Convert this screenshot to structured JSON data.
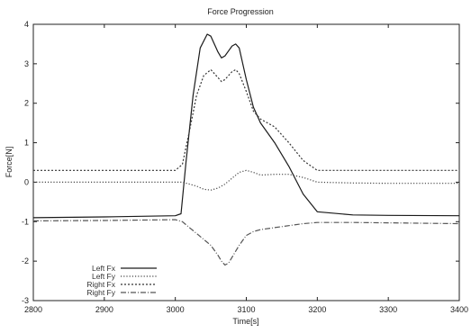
{
  "chart_data": {
    "type": "line",
    "title": "Force Progression",
    "xlabel": "Time[s]",
    "ylabel": "Force[N]",
    "xlim": [
      2800,
      3400
    ],
    "ylim": [
      -3,
      4
    ],
    "xticks": [
      2800,
      2900,
      3000,
      3100,
      3200,
      3300,
      3400
    ],
    "yticks": [
      -3,
      -2,
      -1,
      0,
      1,
      2,
      3,
      4
    ],
    "grid": false,
    "legend_position": "bottom-left",
    "series": [
      {
        "name": "Left Fx",
        "dash": "solid",
        "color": "#1a1a1a",
        "x": [
          2800,
          2900,
          3000,
          3008,
          3015,
          3025,
          3035,
          3045,
          3050,
          3060,
          3065,
          3070,
          3080,
          3085,
          3090,
          3100,
          3110,
          3120,
          3140,
          3160,
          3180,
          3200,
          3250,
          3300,
          3400
        ],
        "y": [
          -0.9,
          -0.88,
          -0.85,
          -0.8,
          0.5,
          2.2,
          3.4,
          3.75,
          3.7,
          3.3,
          3.15,
          3.2,
          3.45,
          3.5,
          3.4,
          2.6,
          1.9,
          1.5,
          1.0,
          0.4,
          -0.3,
          -0.75,
          -0.83,
          -0.84,
          -0.85
        ]
      },
      {
        "name": "Left Fy",
        "dash": "1.2,2",
        "color": "#444444",
        "x": [
          2800,
          2900,
          3000,
          3010,
          3020,
          3030,
          3040,
          3050,
          3060,
          3070,
          3080,
          3090,
          3100,
          3110,
          3120,
          3140,
          3160,
          3180,
          3200,
          3250,
          3300,
          3400
        ],
        "y": [
          0.0,
          0.0,
          0.0,
          0.0,
          -0.05,
          -0.1,
          -0.18,
          -0.2,
          -0.15,
          -0.05,
          0.1,
          0.25,
          0.3,
          0.25,
          0.18,
          0.2,
          0.2,
          0.12,
          0.0,
          -0.02,
          -0.03,
          -0.03
        ]
      },
      {
        "name": "Right Fx",
        "dash": "2,2",
        "color": "#333333",
        "x": [
          2800,
          2900,
          3000,
          3010,
          3020,
          3030,
          3040,
          3050,
          3060,
          3065,
          3070,
          3080,
          3085,
          3090,
          3100,
          3110,
          3120,
          3140,
          3160,
          3180,
          3200,
          3250,
          3300,
          3400
        ],
        "y": [
          0.3,
          0.3,
          0.3,
          0.45,
          1.3,
          2.2,
          2.7,
          2.85,
          2.65,
          2.55,
          2.6,
          2.8,
          2.85,
          2.75,
          2.3,
          1.8,
          1.6,
          1.4,
          1.0,
          0.55,
          0.3,
          0.3,
          0.3,
          0.3
        ]
      },
      {
        "name": "Right Fy",
        "dash": "6,2,1,2",
        "color": "#555555",
        "x": [
          2800,
          2900,
          3000,
          3010,
          3020,
          3030,
          3040,
          3050,
          3060,
          3065,
          3070,
          3075,
          3080,
          3090,
          3100,
          3110,
          3120,
          3140,
          3160,
          3180,
          3200,
          3250,
          3300,
          3400
        ],
        "y": [
          -0.98,
          -0.97,
          -0.95,
          -1.0,
          -1.15,
          -1.3,
          -1.45,
          -1.6,
          -1.85,
          -2.0,
          -2.1,
          -2.05,
          -1.9,
          -1.6,
          -1.35,
          -1.25,
          -1.2,
          -1.15,
          -1.1,
          -1.05,
          -1.02,
          -1.02,
          -1.03,
          -1.05
        ]
      }
    ]
  }
}
